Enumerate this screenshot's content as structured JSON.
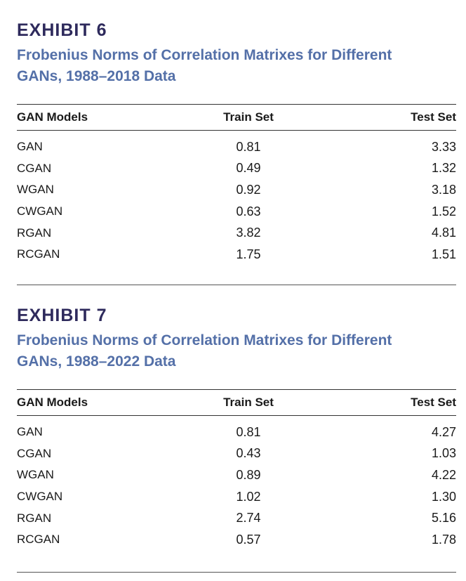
{
  "exhibits": [
    {
      "label": "EXHIBIT 6",
      "title_line1": "Frobenius Norms of Correlation Matrixes for Different",
      "title_line2": "GANs, 1988–2018 Data",
      "columns": [
        "GAN Models",
        "Train Set",
        "Test Set"
      ],
      "rows": [
        {
          "model": "GAN",
          "train": "0.81",
          "test": "3.33"
        },
        {
          "model": "CGAN",
          "train": "0.49",
          "test": "1.32"
        },
        {
          "model": "WGAN",
          "train": "0.92",
          "test": "3.18"
        },
        {
          "model": "CWGAN",
          "train": "0.63",
          "test": "1.52"
        },
        {
          "model": "RGAN",
          "train": "3.82",
          "test": "4.81"
        },
        {
          "model": "RCGAN",
          "train": "1.75",
          "test": "1.51"
        }
      ]
    },
    {
      "label": "EXHIBIT 7",
      "title_line1": "Frobenius Norms of Correlation Matrixes for Different",
      "title_line2": "GANs, 1988–2022 Data",
      "columns": [
        "GAN Models",
        "Train Set",
        "Test Set"
      ],
      "rows": [
        {
          "model": "GAN",
          "train": "0.81",
          "test": "4.27"
        },
        {
          "model": "CGAN",
          "train": "0.43",
          "test": "1.03"
        },
        {
          "model": "WGAN",
          "train": "0.89",
          "test": "4.22"
        },
        {
          "model": "CWGAN",
          "train": "1.02",
          "test": "1.30"
        },
        {
          "model": "RGAN",
          "train": "2.74",
          "test": "5.16"
        },
        {
          "model": "RCGAN",
          "train": "0.57",
          "test": "1.78"
        }
      ]
    }
  ],
  "colors": {
    "label": "#2e2a5c",
    "title": "#5470a8",
    "text": "#1a1a1a",
    "rule": "#333333"
  }
}
